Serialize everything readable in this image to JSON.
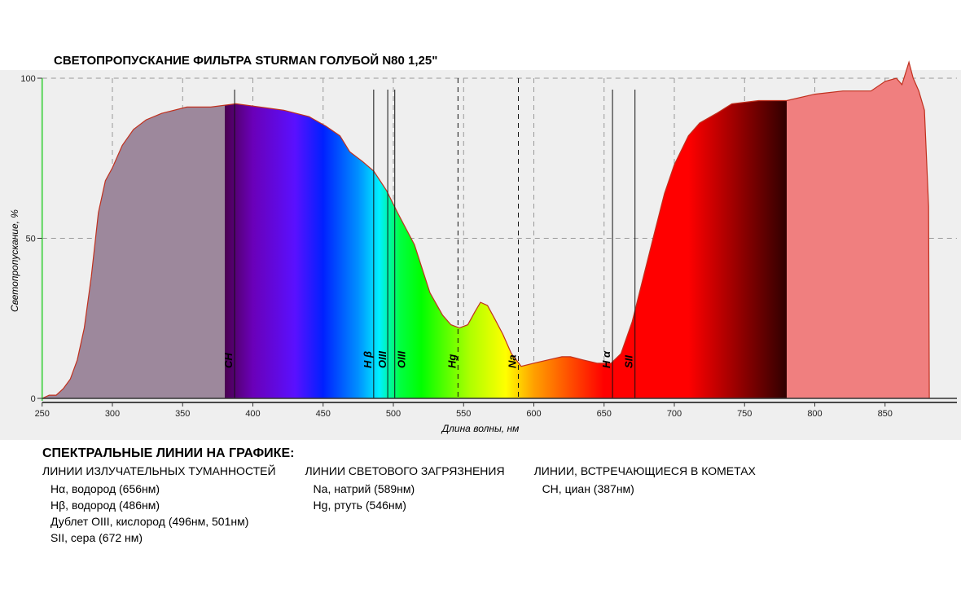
{
  "chart_data": {
    "type": "area",
    "title": "СВЕТОПРОПУСКАНИЕ ФИЛЬТРА STURMAN ГОЛУБОЙ N80 1,25\"",
    "xlabel": "Длина волны, нм",
    "ylabel": "Светопропускание, %",
    "xlim": [
      250,
      900
    ],
    "ylim": [
      0,
      100
    ],
    "xticks": [
      250,
      300,
      350,
      400,
      450,
      500,
      550,
      600,
      650,
      700,
      750,
      800,
      850
    ],
    "yticks": [
      0,
      50,
      100
    ],
    "grid": true,
    "series": [
      {
        "name": "Светопропускание",
        "x": [
          250,
          255,
          260,
          265,
          270,
          275,
          280,
          285,
          290,
          295,
          300,
          307,
          315,
          324,
          335,
          353,
          370,
          388,
          405,
          422,
          440,
          452,
          462,
          469,
          478,
          486,
          495,
          503,
          515,
          526,
          535,
          541,
          547,
          553,
          558,
          562,
          567,
          572,
          578,
          584,
          591,
          600,
          610,
          620,
          626,
          635,
          645,
          655,
          662,
          670,
          678,
          686,
          693,
          700,
          710,
          718,
          730,
          741,
          760,
          780,
          800,
          820,
          840,
          850,
          858,
          862,
          867,
          870,
          874,
          878,
          881,
          881.5
        ],
        "y": [
          0,
          1,
          1,
          3,
          6,
          12,
          22,
          38,
          58,
          68,
          72,
          79,
          84,
          87,
          89,
          91,
          91,
          92,
          91,
          90,
          88,
          85,
          82,
          77,
          74,
          71,
          65,
          58,
          48,
          33,
          26,
          23,
          22,
          23,
          27,
          30,
          29,
          25,
          20,
          14,
          10,
          11,
          12,
          13,
          13,
          12,
          11,
          11,
          14,
          24,
          38,
          52,
          64,
          73,
          82,
          86,
          89,
          92,
          93,
          93,
          95,
          96,
          96,
          99,
          100,
          98,
          105,
          100,
          96,
          90,
          60,
          0
        ]
      }
    ],
    "spectral_lines": [
      {
        "nm": 387,
        "label": "CH"
      },
      {
        "nm": 486,
        "label": "H β"
      },
      {
        "nm": 496,
        "label": "OIII"
      },
      {
        "nm": 501,
        "label": "OIII"
      },
      {
        "nm": 546,
        "label": "Hg"
      },
      {
        "nm": 589,
        "label": "Na"
      },
      {
        "nm": 656,
        "label": "H α"
      },
      {
        "nm": 672,
        "label": "SII"
      }
    ],
    "colors": {
      "uv": "#9d889c",
      "ir": "#f07f7f",
      "curve": "#c0301e",
      "axis": "#5dd65d",
      "bg": "#efefef"
    }
  },
  "legend": {
    "title": "СПЕКТРАЛЬНЫЕ ЛИНИИ НА ГРАФИКЕ:",
    "columns": [
      {
        "header": "ЛИНИИ ИЗЛУЧАТЕЛЬНЫХ ТУМАННОСТЕЙ",
        "items": [
          "Hα, водород (656нм)",
          "Hβ, водород (486нм)",
          "Дублет OIII, кислород (496нм, 501нм)",
          "SII, сера (672 нм)"
        ]
      },
      {
        "header": "ЛИНИИ СВЕТОВОГО ЗАГРЯЗНЕНИЯ",
        "items": [
          "Na, натрий (589нм)",
          "Hg, ртуть (546нм)"
        ]
      },
      {
        "header": "ЛИНИИ, ВСТРЕЧАЮЩИЕСЯ В КОМЕТАХ",
        "items": [
          "CH, циан (387нм)"
        ]
      }
    ]
  }
}
